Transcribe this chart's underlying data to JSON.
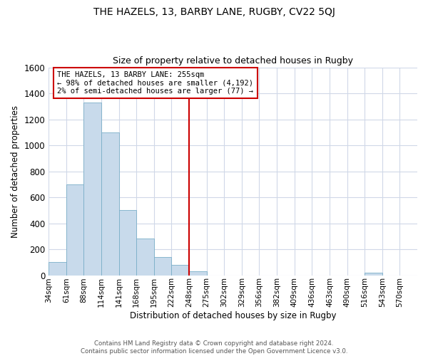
{
  "title": "THE HAZELS, 13, BARBY LANE, RUGBY, CV22 5QJ",
  "subtitle": "Size of property relative to detached houses in Rugby",
  "xlabel": "Distribution of detached houses by size in Rugby",
  "ylabel": "Number of detached properties",
  "bar_color": "#c8daeb",
  "bar_edge_color": "#7aaec8",
  "bin_labels": [
    "34sqm",
    "61sqm",
    "88sqm",
    "114sqm",
    "141sqm",
    "168sqm",
    "195sqm",
    "222sqm",
    "248sqm",
    "275sqm",
    "302sqm",
    "329sqm",
    "356sqm",
    "382sqm",
    "409sqm",
    "436sqm",
    "463sqm",
    "490sqm",
    "516sqm",
    "543sqm",
    "570sqm"
  ],
  "bar_values": [
    100,
    700,
    1330,
    1100,
    500,
    280,
    140,
    80,
    30,
    0,
    0,
    0,
    0,
    0,
    0,
    0,
    0,
    0,
    20,
    0,
    0
  ],
  "ylim": [
    0,
    1600
  ],
  "yticks": [
    0,
    200,
    400,
    600,
    800,
    1000,
    1200,
    1400,
    1600
  ],
  "property_line_label": "THE HAZELS, 13 BARBY LANE: 255sqm",
  "annotation_line1": "← 98% of detached houses are smaller (4,192)",
  "annotation_line2": "2% of semi-detached houses are larger (77) →",
  "annotation_box_color": "#ffffff",
  "annotation_box_edge_color": "#cc0000",
  "vline_color": "#cc0000",
  "vline_index": 8,
  "footer_line1": "Contains HM Land Registry data © Crown copyright and database right 2024.",
  "footer_line2": "Contains public sector information licensed under the Open Government Licence v3.0.",
  "background_color": "#ffffff",
  "grid_color": "#d0d8e8"
}
